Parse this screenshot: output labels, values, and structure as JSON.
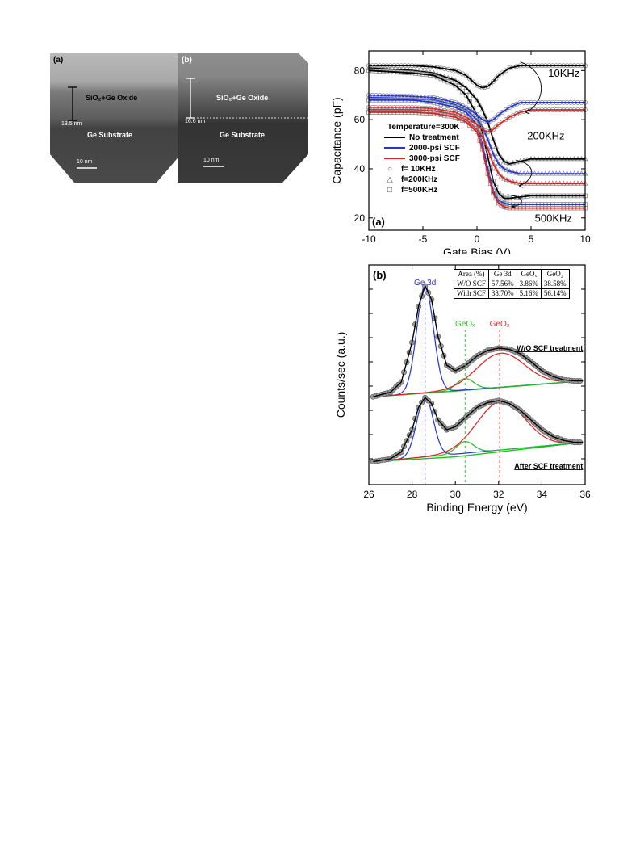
{
  "tem": {
    "panel_a": {
      "label": "(a)",
      "layer": "SiO₂+Ge Oxide",
      "thickness": "13.5 nm",
      "substrate": "Ge Substrate",
      "scale": "10 nm"
    },
    "panel_b": {
      "label": "(b)",
      "layer": "SiO₂+Ge Oxide",
      "thickness": "16.6 nm",
      "substrate": "Ge Substrate",
      "scale": "10 nm"
    }
  },
  "chart_data": [
    {
      "type": "line",
      "panel_label": "(a)",
      "xlabel": "Gate Bias (V)",
      "ylabel": "Capacitance (pF)",
      "xlim": [
        -10,
        10
      ],
      "ylim": [
        15,
        88
      ],
      "xticks": [
        "-10",
        "-5",
        "0",
        "5",
        "10"
      ],
      "yticks": [
        "20",
        "40",
        "60",
        "80"
      ],
      "legend_title": "Temperature=300K",
      "legend": [
        {
          "label": "No treatment",
          "color": "#000000"
        },
        {
          "label": "2000-psi SCF",
          "color": "#1f35e0"
        },
        {
          "label": "3000-psi SCF",
          "color": "#e01f1f"
        }
      ],
      "marker_legend": [
        {
          "marker": "○",
          "label": "f=  10KHz"
        },
        {
          "marker": "△",
          "label": "f=200KHz"
        },
        {
          "marker": "□",
          "label": "f=500KHz"
        }
      ],
      "annotations": [
        "10KHz",
        "200KHz",
        "500KHz"
      ],
      "series": [
        {
          "name": "No treatment",
          "frequency": "10KHz",
          "color": "#000000",
          "x": [
            -10,
            -6,
            -4,
            -2,
            -1,
            0,
            0.5,
            1,
            1.5,
            2,
            3,
            4,
            5,
            7,
            10
          ],
          "y": [
            82,
            82,
            81.5,
            80,
            78,
            74,
            73,
            73.5,
            75.5,
            78,
            81,
            82,
            82,
            82,
            82
          ]
        },
        {
          "name": "No treatment",
          "frequency": "200KHz",
          "color": "#000000",
          "x": [
            -10,
            -6,
            -4,
            -2,
            -1,
            0,
            0.5,
            1,
            1.5,
            2,
            2.5,
            3,
            4,
            5,
            7,
            10
          ],
          "y": [
            81,
            80,
            79,
            76,
            73,
            68,
            64,
            59,
            52,
            46,
            43,
            42,
            43,
            44,
            44,
            44
          ]
        },
        {
          "name": "No treatment",
          "frequency": "500KHz",
          "color": "#000000",
          "x": [
            -10,
            -6,
            -4,
            -2,
            -1,
            0,
            0.5,
            1,
            1.5,
            2,
            2.5,
            3,
            4,
            5,
            7,
            10
          ],
          "y": [
            80,
            79,
            78,
            74,
            70,
            62,
            55,
            45,
            35,
            30,
            28,
            28,
            28.5,
            29,
            29,
            29
          ]
        },
        {
          "name": "2000-psi SCF",
          "frequency": "10KHz",
          "color": "#1f35e0",
          "x": [
            -10,
            -6,
            -4,
            -2,
            -1,
            0,
            0.5,
            1,
            1.5,
            2,
            3,
            4,
            5,
            7,
            10
          ],
          "y": [
            70,
            69.5,
            69,
            67,
            65,
            62,
            60,
            59,
            60,
            62,
            65,
            67,
            67,
            67,
            67
          ]
        },
        {
          "name": "2000-psi SCF",
          "frequency": "200KHz",
          "color": "#1f35e0",
          "x": [
            -10,
            -6,
            -4,
            -2,
            -1,
            0,
            0.5,
            1,
            1.5,
            2,
            2.5,
            3,
            4,
            5,
            7,
            10
          ],
          "y": [
            69,
            68.5,
            68,
            66,
            64,
            60,
            57,
            52,
            46,
            42,
            40,
            39,
            38,
            38,
            38,
            38
          ]
        },
        {
          "name": "2000-psi SCF",
          "frequency": "500KHz",
          "color": "#1f35e0",
          "x": [
            -10,
            -6,
            -4,
            -2,
            -1,
            0,
            0.5,
            1,
            1.5,
            2,
            2.5,
            3,
            4,
            5,
            7,
            10
          ],
          "y": [
            68,
            68,
            67,
            65,
            63,
            58,
            50,
            40,
            31,
            27,
            26,
            25.5,
            25.5,
            25.5,
            25.5,
            25.5
          ]
        },
        {
          "name": "3000-psi SCF",
          "frequency": "10KHz",
          "color": "#e01f1f",
          "x": [
            -10,
            -6,
            -4,
            -2,
            -1,
            0,
            0.5,
            1,
            1.5,
            2,
            3,
            4,
            5,
            7,
            10
          ],
          "y": [
            65,
            65,
            64.5,
            63,
            61,
            58,
            56,
            55,
            56,
            58,
            61,
            63,
            64,
            64,
            64
          ]
        },
        {
          "name": "3000-psi SCF",
          "frequency": "200KHz",
          "color": "#e01f1f",
          "x": [
            -10,
            -6,
            -4,
            -2,
            -1,
            0,
            0.5,
            1,
            1.5,
            2,
            2.5,
            3,
            4,
            5,
            7,
            10
          ],
          "y": [
            64,
            64,
            63.5,
            62,
            60,
            56,
            53,
            48,
            42,
            38,
            36,
            35,
            34,
            34,
            34,
            34
          ]
        },
        {
          "name": "3000-psi SCF",
          "frequency": "500KHz",
          "color": "#e01f1f",
          "x": [
            -10,
            -6,
            -4,
            -2,
            -1,
            0,
            0.5,
            1,
            1.5,
            2,
            2.5,
            3,
            4,
            5,
            7,
            10
          ],
          "y": [
            63,
            63,
            62.5,
            61,
            59,
            55,
            48,
            38,
            30,
            26,
            24.5,
            24,
            24,
            24,
            24,
            24
          ]
        }
      ]
    },
    {
      "type": "line",
      "panel_label": "(b)",
      "xlabel": "Binding Energy (eV)",
      "ylabel": "Counts/sec (a.u.)",
      "xlim": [
        26,
        36
      ],
      "xticks": [
        "26",
        "28",
        "30",
        "32",
        "34",
        "36"
      ],
      "peak_labels": [
        {
          "text": "Ge 3d",
          "x": 28.6,
          "color": "#3030d0"
        },
        {
          "text": "GeOₓ",
          "x": 30.45,
          "color": "#30c030"
        },
        {
          "text": "GeO₂",
          "x": 32.05,
          "color": "#e03030"
        }
      ],
      "spectrum_labels": [
        "W/O SCF treatment",
        "After SCF treatment"
      ],
      "table": {
        "header": [
          "Area (%)",
          "Ge 3d",
          "GeOₓ",
          "GeO₂"
        ],
        "rows": [
          [
            "W/O SCF",
            "57.56%",
            "3.86%",
            "38.58%"
          ],
          [
            "With SCF",
            "38.70%",
            "5.16%",
            "56.14%"
          ]
        ]
      },
      "series": [
        {
          "name": "W/O SCF treatment",
          "x": [
            26.2,
            27,
            27.5,
            28,
            28.3,
            28.6,
            28.9,
            29.2,
            29.6,
            30,
            30.5,
            31,
            31.5,
            32,
            32.5,
            33,
            33.5,
            34,
            34.5,
            35,
            35.5,
            35.9
          ],
          "y": [
            0.02,
            0.06,
            0.15,
            0.5,
            0.82,
            1.0,
            0.88,
            0.55,
            0.3,
            0.25,
            0.3,
            0.38,
            0.43,
            0.45,
            0.44,
            0.4,
            0.33,
            0.25,
            0.2,
            0.17,
            0.16,
            0.16
          ]
        },
        {
          "name": "After SCF treatment",
          "x": [
            26.2,
            27,
            27.5,
            28,
            28.3,
            28.6,
            28.9,
            29.2,
            29.6,
            30,
            30.5,
            31,
            31.5,
            32,
            32.5,
            33,
            33.5,
            34,
            34.5,
            35,
            35.5,
            35.9
          ],
          "y": [
            0.02,
            0.05,
            0.12,
            0.35,
            0.58,
            0.68,
            0.62,
            0.45,
            0.35,
            0.38,
            0.48,
            0.58,
            0.63,
            0.65,
            0.62,
            0.55,
            0.45,
            0.35,
            0.28,
            0.24,
            0.22,
            0.22
          ]
        }
      ]
    }
  ]
}
